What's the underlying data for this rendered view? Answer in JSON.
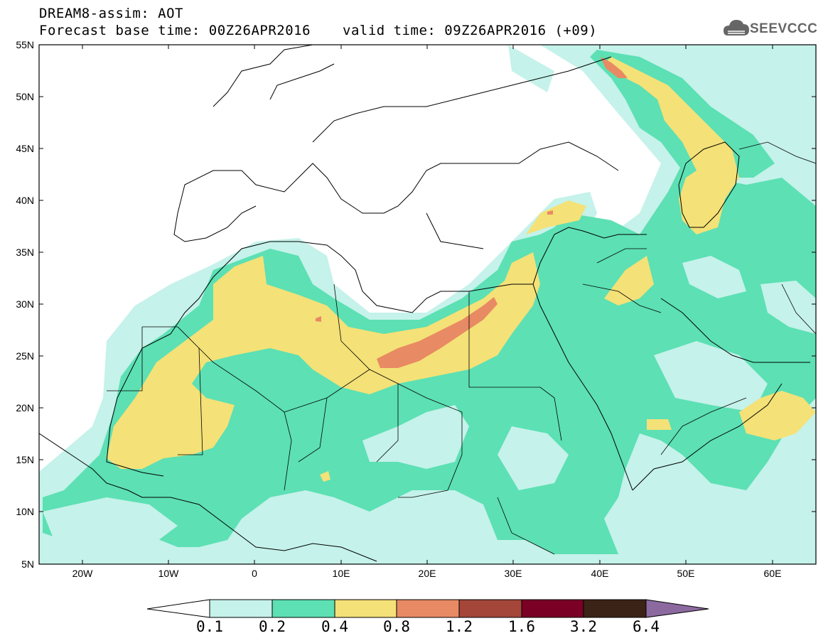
{
  "header": {
    "line1": "DREAM8-assim: AOT",
    "base_time": "Forecast base time: 00Z26APR2016",
    "valid_time": "valid time: 09Z26APR2016 (+09)"
  },
  "logo": {
    "text": "SEEVCCC",
    "icon": "cloud-logo-icon"
  },
  "map": {
    "x_labels": [
      "20W",
      "10W",
      "0",
      "10E",
      "20E",
      "30E",
      "40E",
      "50E",
      "60E"
    ],
    "y_labels": [
      "55N",
      "50N",
      "45N",
      "40N",
      "35N",
      "30N",
      "25N",
      "20N",
      "15N",
      "10N",
      "5N"
    ],
    "lon_range": [
      -25,
      65
    ],
    "lat_range": [
      5,
      55
    ]
  },
  "colorbar": {
    "labels": [
      "0.1",
      "0.2",
      "0.4",
      "0.8",
      "1.2",
      "1.6",
      "3.2",
      "6.4"
    ],
    "colors": [
      "#ffffff",
      "#c5f2ea",
      "#5ce0b4",
      "#f4e177",
      "#e88a63",
      "#a4463a",
      "#7a0025",
      "#3b2317",
      "#8c6aa0"
    ],
    "levels": {
      "c1": "#c5f2ea",
      "c2": "#5ce0b4",
      "c3": "#f4e177",
      "c4": "#e88a63"
    }
  }
}
